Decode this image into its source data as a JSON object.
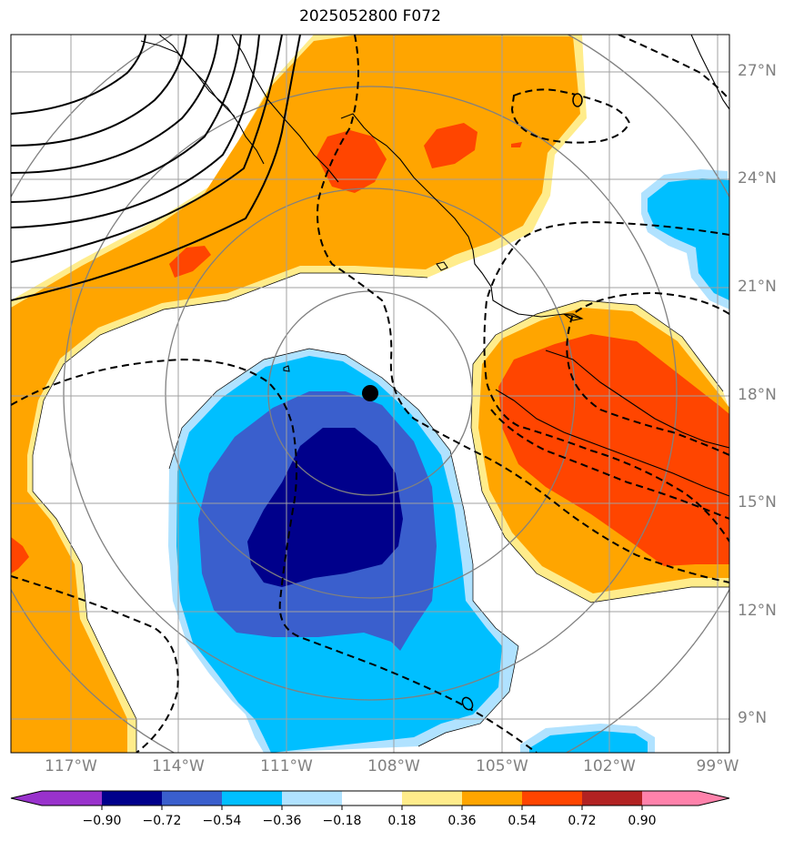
{
  "title": "2025052800 F072",
  "map": {
    "lat_labels": [
      "27°N",
      "24°N",
      "21°N",
      "18°N",
      "15°N",
      "12°N",
      "9°N"
    ],
    "lon_labels": [
      "117°W",
      "114°W",
      "111°W",
      "108°W",
      "105°W",
      "102°W",
      "99°W"
    ],
    "storm_center": {
      "lat": 18.1,
      "lon": "108.7°W"
    },
    "contour_lines": {
      "solid": "positive pressure-height contours (black)",
      "dashed": "negative contours (black dashed)"
    },
    "range_rings": "grey concentric circles around storm center"
  },
  "colorbar": {
    "tick_labels": [
      "−0.90",
      "−0.72",
      "−0.54",
      "−0.36",
      "−0.18",
      "0.18",
      "0.36",
      "0.54",
      "0.72",
      "0.90"
    ],
    "colors": [
      "#9932cc",
      "#00008b",
      "#3a5fcd",
      "#00bfff",
      "#b0e2ff",
      "#ffffff",
      "#ffec8b",
      "#ffa500",
      "#ff4500",
      "#b22222",
      "#ff82ab"
    ]
  }
}
